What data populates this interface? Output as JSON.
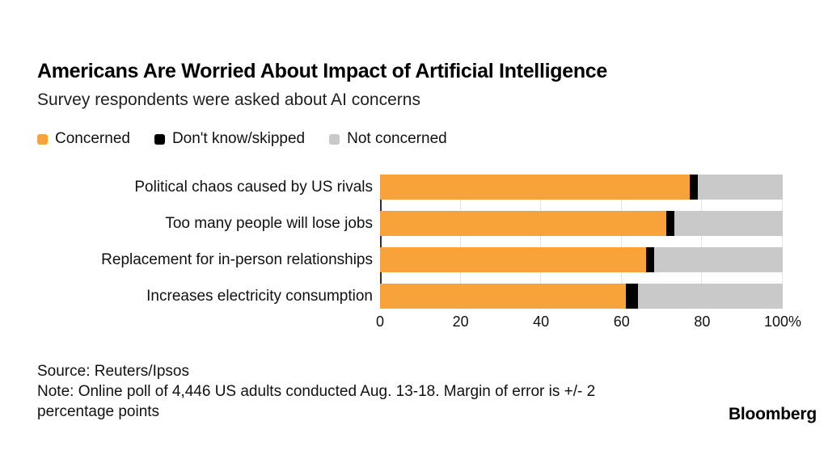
{
  "header": {
    "title": "Americans Are Worried About Impact of Artificial Intelligence",
    "subtitle": "Survey respondents were asked about AI concerns"
  },
  "legend": [
    {
      "label": "Concerned",
      "color": "#F8A33A"
    },
    {
      "label": "Don't know/skipped",
      "color": "#000000"
    },
    {
      "label": "Not concerned",
      "color": "#C9C9C9"
    }
  ],
  "chart_data": {
    "type": "bar",
    "orientation": "horizontal",
    "stacked": true,
    "title": "Americans Are Worried About Impact of Artificial Intelligence",
    "subtitle": "Survey respondents were asked about AI concerns",
    "categories": [
      "Political chaos caused by US rivals",
      "Too many people will lose jobs",
      "Replacement for in-person relationships",
      "Increases electricity consumption"
    ],
    "series": [
      {
        "name": "Concerned",
        "color": "#F8A33A",
        "values": [
          77,
          71,
          66,
          61
        ]
      },
      {
        "name": "Don't know/skipped",
        "color": "#000000",
        "values": [
          2,
          2,
          2,
          3
        ]
      },
      {
        "name": "Not concerned",
        "color": "#C9C9C9",
        "values": [
          21,
          27,
          32,
          36
        ]
      }
    ],
    "xlim": [
      0,
      100
    ],
    "unit": "%",
    "x_ticks": [
      {
        "value": 0,
        "label": "0"
      },
      {
        "value": 20,
        "label": "20"
      },
      {
        "value": 40,
        "label": "40"
      },
      {
        "value": 60,
        "label": "60"
      },
      {
        "value": 80,
        "label": "80"
      },
      {
        "value": 100,
        "label": "100%"
      }
    ],
    "gridline_values": [
      20,
      40,
      60,
      80,
      100
    ],
    "grid": "vertical",
    "legend_position": "top"
  },
  "footer": {
    "source": "Source: Reuters/Ipsos",
    "note_lines": [
      "Note: Online poll of 4,446 US adults conducted Aug. 13-18. Margin of error is +/- 2",
      "percentage points"
    ],
    "brand": "Bloomberg"
  },
  "colors": {
    "background": "#FFFFFF",
    "gridline": "#E3E3E3",
    "axis_tick": "#2F2F2F",
    "text": "#111111"
  }
}
